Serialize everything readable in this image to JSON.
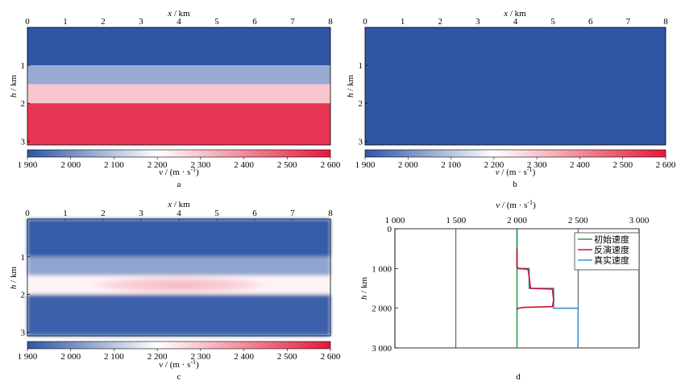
{
  "colorbar": {
    "colors": [
      "#2f55a5",
      "#ffffff",
      "#e3193a"
    ],
    "range": [
      1900,
      2600
    ],
    "ticks": [
      "1 900",
      "2 000",
      "2 100",
      "2 200",
      "2 300",
      "2 400",
      "2 500",
      "2 600"
    ],
    "label_var": "v",
    "label_unit": " / (m · s",
    "label_exp": "-1",
    "label_close": ")"
  },
  "panels": {
    "a": {
      "caption": "a",
      "xlabel_var": "x",
      "xlabel_unit": " / km",
      "ylabel_var": "h",
      "ylabel_unit": " / km",
      "xticks": [
        "0",
        "1",
        "2",
        "3",
        "4",
        "5",
        "6",
        "7",
        "8"
      ],
      "yticks": [
        "1",
        "2",
        "3"
      ]
    },
    "b": {
      "caption": "b",
      "xlabel_var": "x",
      "xlabel_unit": " / km",
      "ylabel_var": "h",
      "ylabel_unit": " / km",
      "xticks": [
        "0",
        "1",
        "2",
        "3",
        "4",
        "5",
        "6",
        "7",
        "8"
      ],
      "yticks": [
        "1",
        "2",
        "3"
      ]
    },
    "c": {
      "caption": "c",
      "xlabel_var": "x",
      "xlabel_unit": " / km",
      "ylabel_var": "h",
      "ylabel_unit": " / km",
      "xticks": [
        "0",
        "1",
        "2",
        "3",
        "4",
        "5",
        "6",
        "7",
        "8"
      ],
      "yticks": [
        "1",
        "2",
        "3"
      ]
    },
    "d": {
      "caption": "d"
    }
  },
  "chart_data": [
    {
      "panel": "a",
      "type": "heatmap",
      "x_range_km": [
        0,
        8
      ],
      "h_range_km": [
        0,
        3.1
      ],
      "layers": [
        {
          "h_top": 0.0,
          "h_bottom": 1.0,
          "v": 1900
        },
        {
          "h_top": 1.0,
          "h_bottom": 1.5,
          "v": 2050
        },
        {
          "h_top": 1.5,
          "h_bottom": 2.0,
          "v": 2300
        },
        {
          "h_top": 2.0,
          "h_bottom": 3.1,
          "v": 2550
        }
      ]
    },
    {
      "panel": "b",
      "type": "heatmap",
      "x_range_km": [
        0,
        8
      ],
      "h_range_km": [
        0,
        3.1
      ],
      "layers": [
        {
          "h_top": 0.0,
          "h_bottom": 3.1,
          "v": 1900
        }
      ]
    },
    {
      "panel": "c",
      "type": "heatmap",
      "x_range_km": [
        0,
        8
      ],
      "h_range_km": [
        0,
        3.1
      ],
      "layers": [
        {
          "h_top": 0.0,
          "h_bottom": 1.0,
          "v": 1910
        },
        {
          "h_top": 1.0,
          "h_bottom": 1.5,
          "v": 2040
        },
        {
          "h_top": 1.5,
          "h_bottom": 2.0,
          "v": 2220
        },
        {
          "h_top": 2.0,
          "h_bottom": 3.1,
          "v": 1920
        }
      ],
      "anomaly": {
        "x_from": 2,
        "x_to": 6,
        "h_from": 1.5,
        "h_to": 2.0,
        "v_center": 2330
      }
    },
    {
      "panel": "d",
      "type": "line",
      "xlabel_var": "v",
      "xlabel_unit": " / (m · s",
      "xlabel_exp": "-1",
      "xlabel_close": ")",
      "ylabel_var": "h",
      "ylabel_unit": " / km",
      "xlim": [
        1000,
        3000
      ],
      "ylim": [
        0,
        3000
      ],
      "xticks": [
        1000,
        1500,
        2000,
        2500,
        3000
      ],
      "xtick_labels": [
        "1 000",
        "1 500",
        "2 000",
        "2 500",
        "3 000"
      ],
      "yticks": [
        0,
        1000,
        2000,
        3000
      ],
      "ytick_labels": [
        "0",
        "1 000",
        "2 000",
        "3 000"
      ],
      "legend_position": "top-right",
      "series": [
        {
          "name": "初始速度",
          "color": "#2e9e4f",
          "x": [
            2000,
            2000
          ],
          "y": [
            0,
            3000
          ]
        },
        {
          "name": "反演速度",
          "color": "#c8102e",
          "x": [
            2000,
            2000,
            2010,
            2090,
            2100,
            2110,
            2290,
            2300,
            2290,
            2050,
            2010,
            2000,
            2000
          ],
          "y": [
            500,
            950,
            1000,
            1020,
            1200,
            1500,
            1520,
            1800,
            1960,
            1980,
            2000,
            2020,
            2040
          ]
        },
        {
          "name": "真实速度",
          "color": "#3a8fd0",
          "x": [
            2000,
            2000,
            2100,
            2100,
            2300,
            2300,
            2500,
            2500
          ],
          "y": [
            0,
            1000,
            1000,
            1500,
            1500,
            2000,
            2000,
            3000
          ]
        }
      ]
    }
  ]
}
